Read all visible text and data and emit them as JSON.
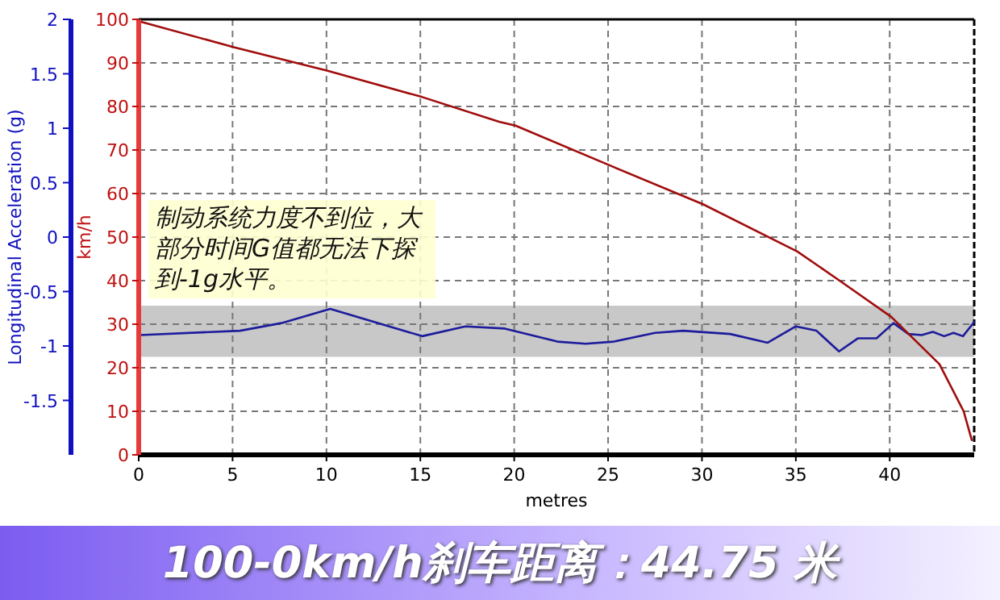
{
  "chart_data": {
    "type": "line",
    "title": "100-0km/h刹车距离：44.75 米",
    "xlabel": "metres",
    "ylabel": "Longitudinal Acceleration (g)",
    "y2label": "km/h",
    "annotations": [
      "制动系统力度不到位，大部分时间G值都无法下探到-1g水平。"
    ],
    "xlim": [
      0,
      44.5
    ],
    "xticks": [
      0,
      5,
      10,
      15,
      20,
      25,
      30,
      35,
      40
    ],
    "ylim": [
      -2,
      2
    ],
    "yticks": [
      -1.5,
      -1,
      -0.5,
      0,
      0.5,
      1,
      1.5,
      2
    ],
    "y2lim": [
      0,
      100
    ],
    "y2ticks": [
      0,
      10,
      20,
      30,
      40,
      50,
      60,
      70,
      80,
      90,
      100
    ],
    "grid": true,
    "line_style": "solid",
    "bands": [
      {
        "axis": "y",
        "from": -1.1,
        "to": -0.63,
        "color": "#c8c8c8"
      }
    ],
    "series": [
      {
        "color": "#1c1c9c",
        "axis": "y",
        "x": [
          0.07,
          5.4,
          7.6,
          10.2,
          15.1,
          17.4,
          19.5,
          22.3,
          23.8,
          25.3,
          27.5,
          29.0,
          31.5,
          33.5,
          35.0,
          36.1,
          37.3,
          38.3,
          39.3,
          40.2,
          41.0,
          41.7,
          42.3,
          42.9,
          43.4,
          43.9,
          44.5
        ],
        "values": [
          -0.9,
          -0.86,
          -0.79,
          -0.66,
          -0.91,
          -0.82,
          -0.84,
          -0.96,
          -0.98,
          -0.96,
          -0.88,
          -0.86,
          -0.89,
          -0.97,
          -0.82,
          -0.86,
          -1.05,
          -0.93,
          -0.93,
          -0.79,
          -0.89,
          -0.9,
          -0.87,
          -0.91,
          -0.88,
          -0.91,
          -0.78
        ]
      },
      {
        "color": "#a00c0c",
        "axis": "y2",
        "x": [
          0,
          5.06,
          10.06,
          15.07,
          19.2,
          20.07,
          25.07,
          30.08,
          35.08,
          37.5,
          40.08,
          42.65,
          43.94,
          44.37
        ],
        "values": [
          99.6,
          93.6,
          88.2,
          82.2,
          76.5,
          75.6,
          66.5,
          57.5,
          46.7,
          39.5,
          31.7,
          20.8,
          10.0,
          3.4
        ]
      }
    ]
  }
}
